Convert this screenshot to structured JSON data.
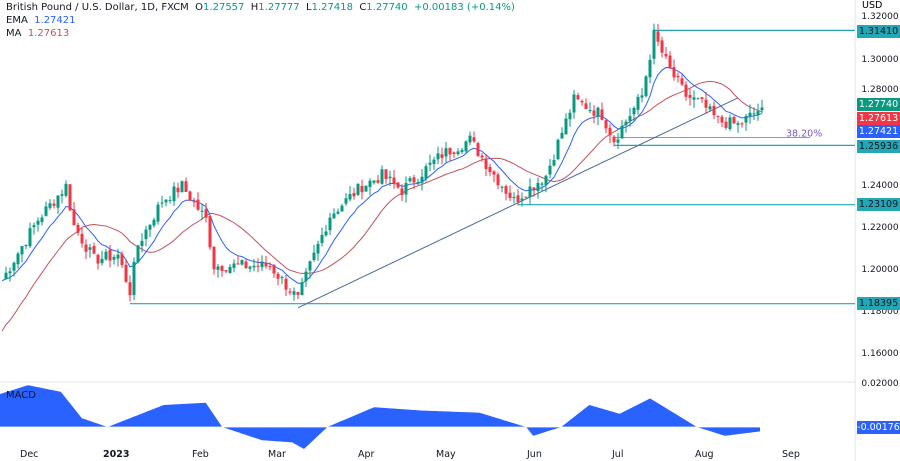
{
  "header": {
    "title": "British Pound / U.S. Dollar, 1D, FXCM",
    "o_label": "O",
    "o": "1.27557",
    "h_label": "H",
    "h": "1.27777",
    "l_label": "L",
    "l": "1.27418",
    "c_label": "C",
    "c": "1.27740",
    "change": "+0.00183 (+0.14%)",
    "ema_label": "EMA",
    "ema": "1.27421",
    "ma_label": "MA",
    "ma": "1.27613"
  },
  "colors": {
    "up": "#089981",
    "down": "#f23645",
    "ema": "#2962ff",
    "ma": "#c2535d",
    "level": "#22a7b5",
    "macd": "#2962ff"
  },
  "chart_data": {
    "type": "candlestick",
    "currency": "USD",
    "y_ticks": [
      "1.32000",
      "1.30000",
      "1.28000",
      "1.24000",
      "1.22000",
      "1.20000",
      "1.18000",
      "1.16000"
    ],
    "ylim": [
      1.15,
      1.325
    ],
    "x_ticks": [
      "Dec",
      "2023",
      "Feb",
      "Mar",
      "Apr",
      "May",
      "Jun",
      "Jul",
      "Aug",
      "Sep"
    ],
    "close_waypoints": [
      [
        0,
        1.195
      ],
      [
        3,
        1.205
      ],
      [
        9,
        1.224
      ],
      [
        16,
        1.24
      ],
      [
        18,
        1.221
      ],
      [
        23,
        1.205
      ],
      [
        29,
        1.207
      ],
      [
        32,
        1.19
      ],
      [
        34,
        1.212
      ],
      [
        40,
        1.233
      ],
      [
        45,
        1.24
      ],
      [
        51,
        1.224
      ],
      [
        53,
        1.202
      ],
      [
        60,
        1.202
      ],
      [
        67,
        1.202
      ],
      [
        74,
        1.186
      ],
      [
        77,
        1.202
      ],
      [
        82,
        1.226
      ],
      [
        90,
        1.24
      ],
      [
        95,
        1.245
      ],
      [
        100,
        1.238
      ],
      [
        110,
        1.255
      ],
      [
        117,
        1.262
      ],
      [
        122,
        1.248
      ],
      [
        128,
        1.233
      ],
      [
        136,
        1.245
      ],
      [
        143,
        1.281
      ],
      [
        150,
        1.274
      ],
      [
        153,
        1.262
      ],
      [
        160,
        1.283
      ],
      [
        163,
        1.312
      ],
      [
        167,
        1.295
      ],
      [
        171,
        1.283
      ],
      [
        175,
        1.279
      ],
      [
        179,
        1.271
      ],
      [
        184,
        1.269
      ],
      [
        190,
        1.2774
      ]
    ],
    "levels": [
      {
        "label": "1.31410",
        "value": 1.3141,
        "from_bar": 163
      },
      {
        "label": "1.25936",
        "value": 1.25936,
        "from_bar": 153
      },
      {
        "label": "1.23109",
        "value": 1.23109,
        "from_bar": 129
      },
      {
        "label": "1.18395",
        "value": 1.18395,
        "from_bar": 32
      }
    ],
    "fib": {
      "label": "38.20%",
      "value": 1.2626,
      "from_bar": 153
    },
    "trendline": [
      [
        74,
        1.182
      ],
      [
        184,
        1.282
      ]
    ],
    "price_tags": [
      {
        "label": "1.27740",
        "color": "#089981",
        "value": 1.2774
      },
      {
        "label": "1.27613",
        "color": "#f23645",
        "value": 1.27613
      },
      {
        "label": "1.27421",
        "color": "#2962ff",
        "value": 1.27421
      }
    ],
    "macd": {
      "label": "MACD",
      "tick_top": "0.02000",
      "current": "-0.00176",
      "waypoints": [
        [
          0,
          0.015
        ],
        [
          12,
          0.019
        ],
        [
          26,
          0.016
        ],
        [
          35,
          0.004
        ],
        [
          46,
          0.0
        ],
        [
          70,
          0.01
        ],
        [
          88,
          0.011
        ],
        [
          95,
          0.0
        ],
        [
          112,
          -0.006
        ],
        [
          125,
          -0.007
        ],
        [
          130,
          -0.01
        ],
        [
          140,
          0.0
        ],
        [
          160,
          0.009
        ],
        [
          180,
          0.0075
        ],
        [
          205,
          0.0065
        ],
        [
          225,
          0.0
        ],
        [
          228,
          -0.004
        ],
        [
          240,
          0.0
        ],
        [
          252,
          0.01
        ],
        [
          265,
          0.006
        ],
        [
          278,
          0.013
        ],
        [
          298,
          0.0
        ],
        [
          310,
          -0.004
        ],
        [
          325,
          -0.002
        ]
      ]
    }
  }
}
